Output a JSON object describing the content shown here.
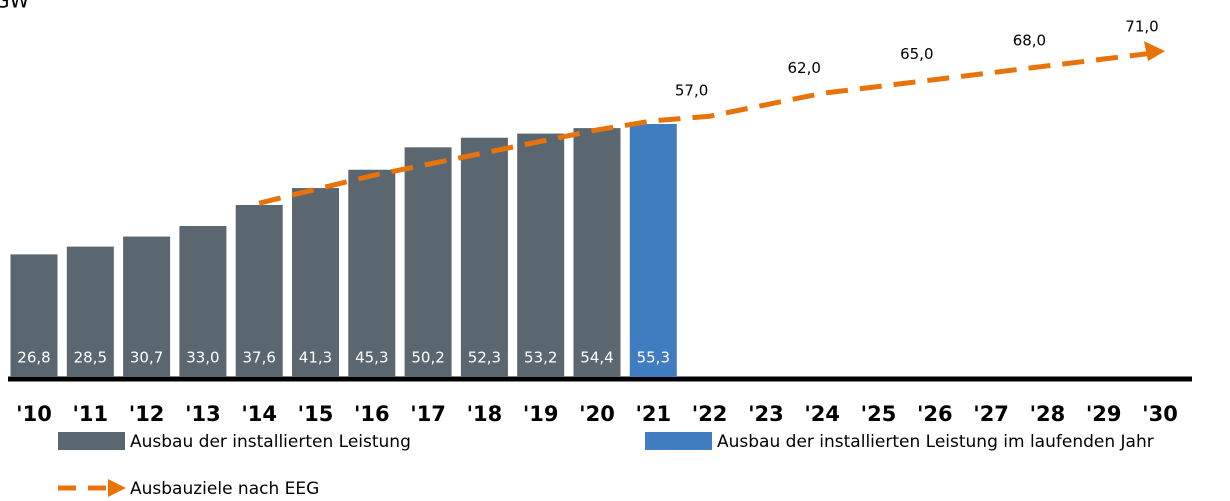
{
  "chart_data": {
    "type": "bar",
    "y_label": "GW",
    "categories": [
      "'10",
      "'11",
      "'12",
      "'13",
      "'14",
      "'15",
      "'16",
      "'17",
      "'18",
      "'19",
      "'20",
      "'21",
      "'22",
      "'23",
      "'24",
      "'25",
      "'26",
      "'27",
      "'28",
      "'29",
      "'30"
    ],
    "ylim": [
      0,
      80
    ],
    "series": [
      {
        "name": "Ausbau der installierten Leistung",
        "type": "bar",
        "color": "#5a6670",
        "values": [
          26.8,
          28.5,
          30.7,
          33.0,
          37.6,
          41.3,
          45.3,
          50.2,
          52.3,
          53.2,
          54.4,
          null,
          null,
          null,
          null,
          null,
          null,
          null,
          null,
          null,
          null
        ],
        "value_labels": [
          "26,8",
          "28,5",
          "30,7",
          "33,0",
          "37,6",
          "41,3",
          "45,3",
          "50,2",
          "52,3",
          "53,2",
          "54,4",
          null,
          null,
          null,
          null,
          null,
          null,
          null,
          null,
          null,
          null
        ]
      },
      {
        "name": "Ausbau der installierten Leistung im laufenden Jahr",
        "type": "bar",
        "color": "#3f7cc0",
        "values": [
          null,
          null,
          null,
          null,
          null,
          null,
          null,
          null,
          null,
          null,
          null,
          55.3,
          null,
          null,
          null,
          null,
          null,
          null,
          null,
          null,
          null
        ],
        "value_labels": [
          null,
          null,
          null,
          null,
          null,
          null,
          null,
          null,
          null,
          null,
          null,
          "55,3",
          null,
          null,
          null,
          null,
          null,
          null,
          null,
          null,
          null
        ]
      },
      {
        "name": "Ausbauziele nach EEG",
        "type": "line",
        "color": "#e8730a",
        "values": [
          null,
          null,
          null,
          null,
          38,
          41,
          44,
          46.5,
          49,
          51.5,
          54,
          56,
          57,
          59.5,
          62,
          63.5,
          65,
          66.5,
          68,
          69.5,
          71
        ],
        "value_labels": [
          null,
          null,
          null,
          null,
          null,
          null,
          null,
          null,
          null,
          null,
          null,
          null,
          "57,0",
          null,
          "62,0",
          null,
          "65,0",
          null,
          "68,0",
          null,
          "71,0"
        ]
      }
    ]
  }
}
